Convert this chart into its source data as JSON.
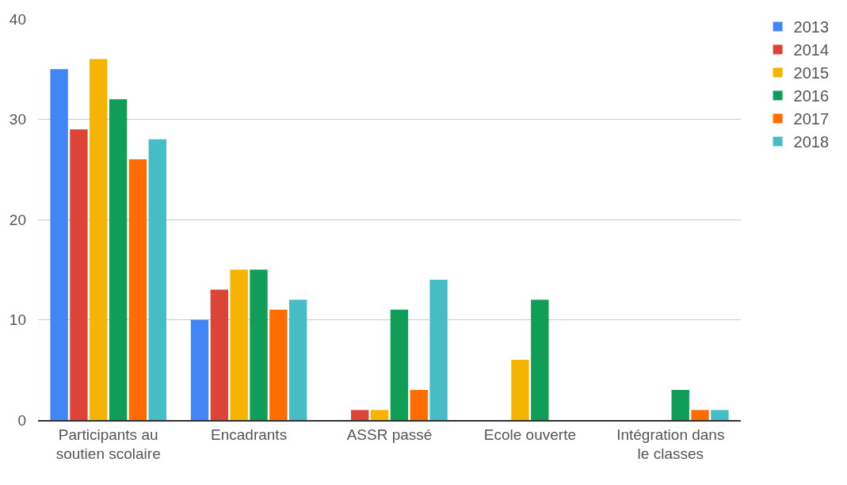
{
  "chart_data": {
    "type": "bar",
    "categories": [
      "Participants au soutien scolaire",
      "Encadrants",
      "ASSR passé",
      "Ecole ouverte",
      "Intégration dans le classes"
    ],
    "series": [
      {
        "name": "2013",
        "color": "#4285f4",
        "values": [
          35,
          10,
          0,
          0,
          0
        ]
      },
      {
        "name": "2014",
        "color": "#db4437",
        "values": [
          29,
          13,
          1,
          0,
          0
        ]
      },
      {
        "name": "2015",
        "color": "#f4b400",
        "values": [
          36,
          15,
          1,
          6,
          0
        ]
      },
      {
        "name": "2016",
        "color": "#0f9d58",
        "values": [
          32,
          15,
          11,
          12,
          3
        ]
      },
      {
        "name": "2017",
        "color": "#ff6d00",
        "values": [
          26,
          11,
          3,
          0,
          1
        ]
      },
      {
        "name": "2018",
        "color": "#46bdc6",
        "values": [
          28,
          12,
          14,
          0,
          1
        ]
      }
    ],
    "ylim": [
      0,
      40
    ],
    "yticks": [
      0,
      10,
      20,
      30,
      40
    ],
    "grid": "y",
    "legend": "top right"
  }
}
